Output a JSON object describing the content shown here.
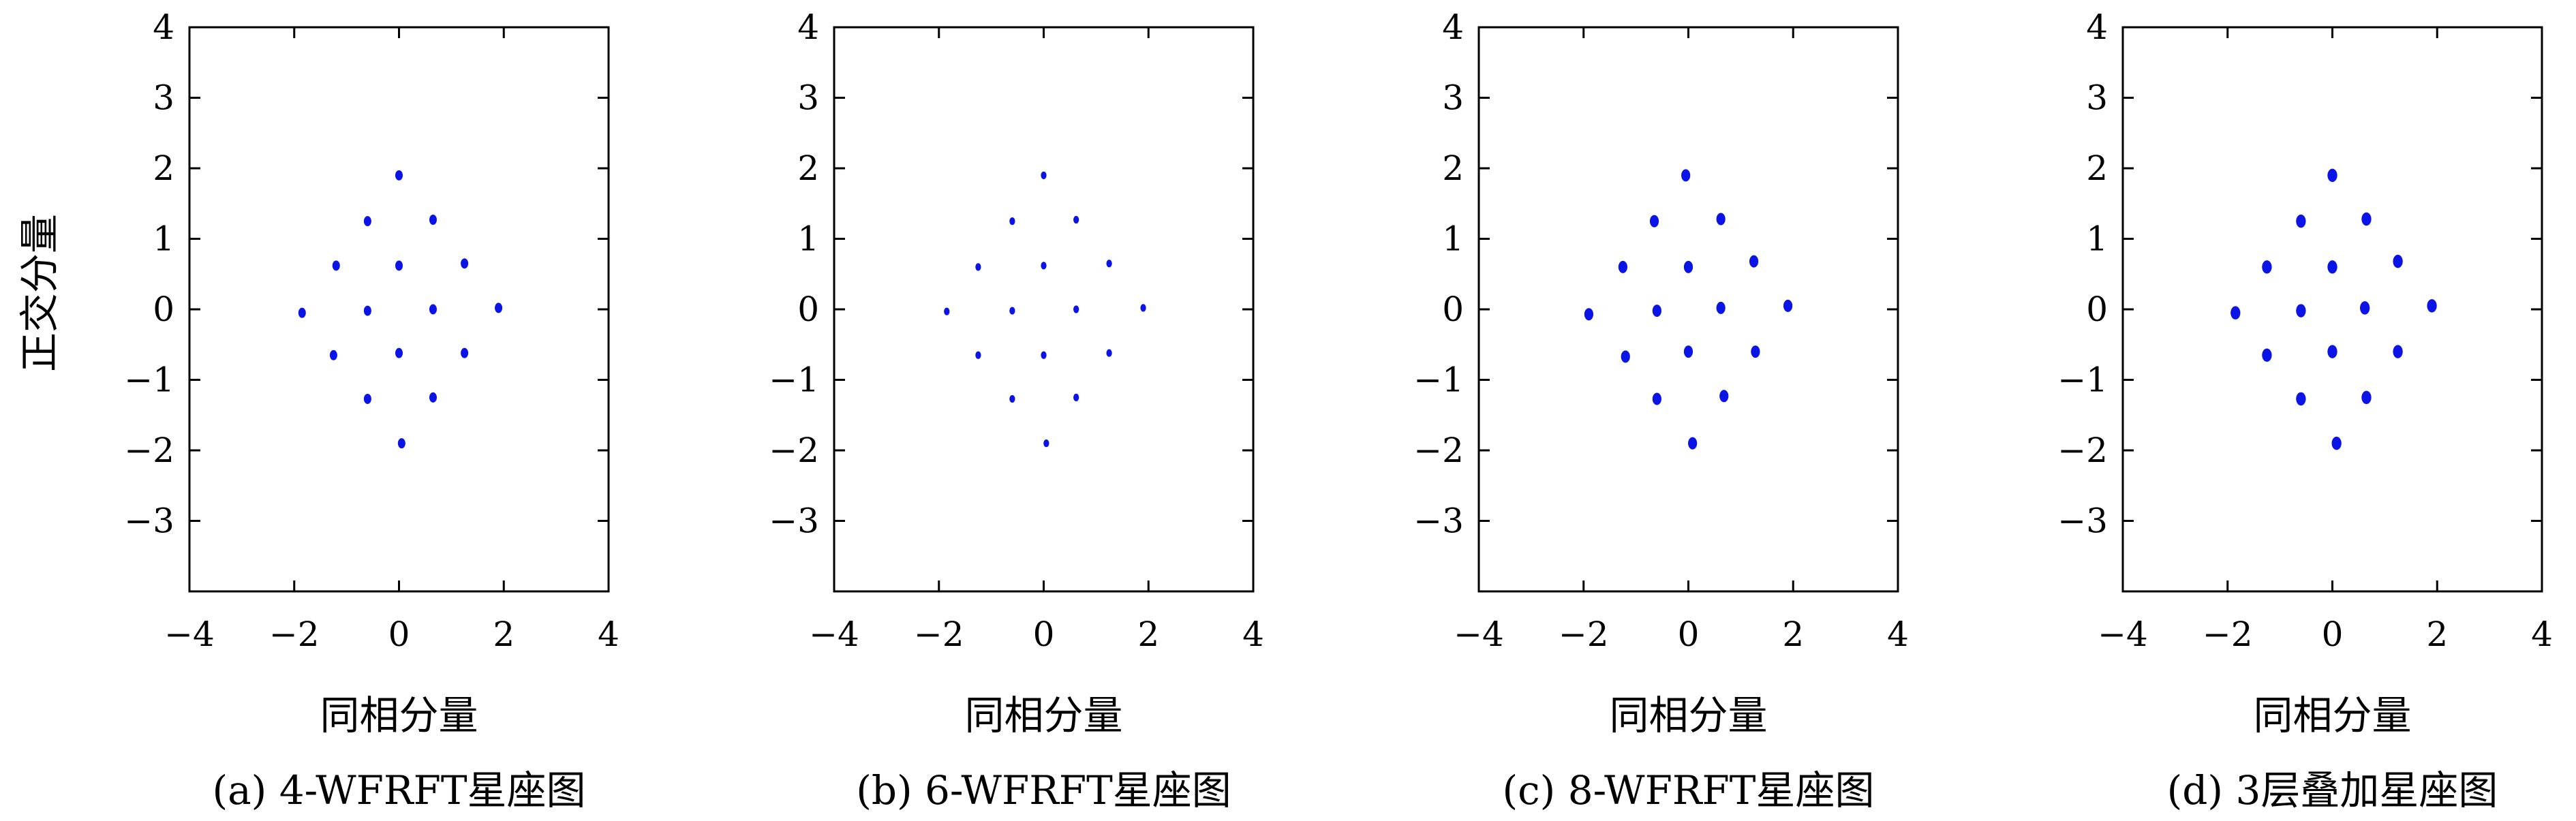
{
  "figure": {
    "ylabel": "正交分量"
  },
  "colors": {
    "points": "#0a14e6",
    "axes": "#000000"
  },
  "chart_data": [
    {
      "type": "scatter",
      "caption": "(a) 4-WFRFT星座图",
      "xlabel": "同相分量",
      "ylabel": "正交分量",
      "xlim": [
        -4,
        4
      ],
      "ylim": [
        -4,
        4
      ],
      "xticks": [
        "−4",
        "−2",
        "0",
        "2",
        "4"
      ],
      "yticks": [
        "4",
        "3",
        "2",
        "1",
        "0",
        "−1",
        "−2",
        "−3"
      ],
      "grid": false,
      "marker_size": 1.0,
      "points": [
        {
          "x": 0.0,
          "y": 1.9
        },
        {
          "x": -0.6,
          "y": 1.25
        },
        {
          "x": 0.65,
          "y": 1.27
        },
        {
          "x": -1.2,
          "y": 0.62
        },
        {
          "x": 0.0,
          "y": 0.62
        },
        {
          "x": 1.25,
          "y": 0.65
        },
        {
          "x": -1.85,
          "y": -0.05
        },
        {
          "x": -0.6,
          "y": -0.02
        },
        {
          "x": 0.65,
          "y": 0.0
        },
        {
          "x": 1.9,
          "y": 0.02
        },
        {
          "x": -1.25,
          "y": -0.65
        },
        {
          "x": 0.0,
          "y": -0.62
        },
        {
          "x": 1.25,
          "y": -0.62
        },
        {
          "x": -0.6,
          "y": -1.27
        },
        {
          "x": 0.65,
          "y": -1.25
        },
        {
          "x": 0.05,
          "y": -1.9
        }
      ]
    },
    {
      "type": "scatter",
      "caption": "(b) 6-WFRFT星座图",
      "xlabel": "同相分量",
      "ylabel": "",
      "xlim": [
        -4,
        4
      ],
      "ylim": [
        -4,
        4
      ],
      "xticks": [
        "−4",
        "−2",
        "0",
        "2",
        "4"
      ],
      "yticks": [
        "4",
        "3",
        "2",
        "1",
        "0",
        "−1",
        "−2",
        "−3"
      ],
      "grid": false,
      "marker_size": 0.75,
      "points": [
        {
          "x": 0.0,
          "y": 1.9
        },
        {
          "x": -0.6,
          "y": 1.25
        },
        {
          "x": 0.62,
          "y": 1.27
        },
        {
          "x": -1.25,
          "y": 0.6
        },
        {
          "x": 0.0,
          "y": 0.62
        },
        {
          "x": 1.25,
          "y": 0.65
        },
        {
          "x": -1.85,
          "y": -0.03
        },
        {
          "x": -0.6,
          "y": -0.02
        },
        {
          "x": 0.62,
          "y": 0.0
        },
        {
          "x": 1.9,
          "y": 0.02
        },
        {
          "x": -1.25,
          "y": -0.65
        },
        {
          "x": 0.0,
          "y": -0.65
        },
        {
          "x": 1.25,
          "y": -0.62
        },
        {
          "x": -0.6,
          "y": -1.27
        },
        {
          "x": 0.62,
          "y": -1.25
        },
        {
          "x": 0.05,
          "y": -1.9
        }
      ]
    },
    {
      "type": "scatter",
      "caption": "(c) 8-WFRFT星座图",
      "xlabel": "同相分量",
      "ylabel": "",
      "xlim": [
        -4,
        4
      ],
      "ylim": [
        -4,
        4
      ],
      "xticks": [
        "−4",
        "−2",
        "0",
        "2",
        "4"
      ],
      "yticks": [
        "4",
        "3",
        "2",
        "1",
        "0",
        "−1",
        "−2",
        "−3"
      ],
      "grid": false,
      "marker_size": 1.2,
      "points": [
        {
          "x": -0.05,
          "y": 1.9
        },
        {
          "x": -0.65,
          "y": 1.25
        },
        {
          "x": 0.62,
          "y": 1.28
        },
        {
          "x": -1.25,
          "y": 0.6
        },
        {
          "x": 0.0,
          "y": 0.6
        },
        {
          "x": 1.25,
          "y": 0.68
        },
        {
          "x": -1.9,
          "y": -0.07
        },
        {
          "x": -0.6,
          "y": -0.02
        },
        {
          "x": 0.62,
          "y": 0.02
        },
        {
          "x": 1.9,
          "y": 0.05
        },
        {
          "x": -1.2,
          "y": -0.67
        },
        {
          "x": 0.0,
          "y": -0.6
        },
        {
          "x": 1.28,
          "y": -0.6
        },
        {
          "x": -0.6,
          "y": -1.27
        },
        {
          "x": 0.68,
          "y": -1.23
        },
        {
          "x": 0.08,
          "y": -1.9
        }
      ]
    },
    {
      "type": "scatter",
      "caption": "(d) 3层叠加星座图",
      "xlabel": "同相分量",
      "ylabel": "",
      "xlim": [
        -4,
        4
      ],
      "ylim": [
        -4,
        4
      ],
      "xticks": [
        "−4",
        "−2",
        "0",
        "2",
        "4"
      ],
      "yticks": [
        "4",
        "3",
        "2",
        "1",
        "0",
        "−1",
        "−2",
        "−3"
      ],
      "grid": false,
      "marker_size": 1.3,
      "points": [
        {
          "x": 0.0,
          "y": 1.9
        },
        {
          "x": -0.6,
          "y": 1.25
        },
        {
          "x": 0.65,
          "y": 1.28
        },
        {
          "x": -1.25,
          "y": 0.6
        },
        {
          "x": 0.0,
          "y": 0.6
        },
        {
          "x": 1.25,
          "y": 0.68
        },
        {
          "x": -1.85,
          "y": -0.05
        },
        {
          "x": -0.6,
          "y": -0.02
        },
        {
          "x": 0.62,
          "y": 0.02
        },
        {
          "x": 1.9,
          "y": 0.05
        },
        {
          "x": -1.25,
          "y": -0.65
        },
        {
          "x": 0.0,
          "y": -0.6
        },
        {
          "x": 1.25,
          "y": -0.6
        },
        {
          "x": -0.6,
          "y": -1.27
        },
        {
          "x": 0.65,
          "y": -1.25
        },
        {
          "x": 0.08,
          "y": -1.9
        }
      ]
    }
  ]
}
